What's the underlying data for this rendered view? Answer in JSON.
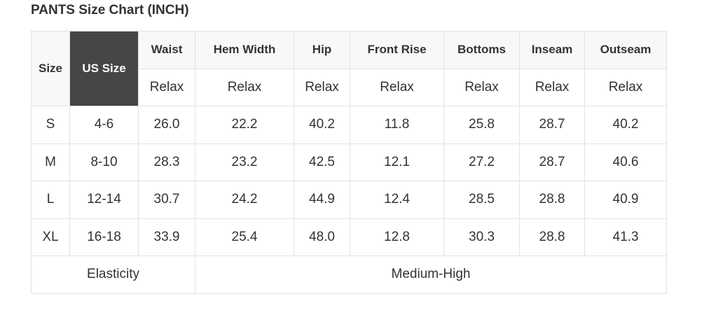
{
  "title": "PANTS Size Chart (INCH)",
  "headers": {
    "size": "Size",
    "us_size": "US Size",
    "columns": [
      "Waist",
      "Hem Width",
      "Hip",
      "Front Rise",
      "Bottoms",
      "Inseam",
      "Outseam"
    ],
    "fit": [
      "Relax",
      "Relax",
      "Relax",
      "Relax",
      "Relax",
      "Relax",
      "Relax"
    ]
  },
  "rows": [
    [
      "S",
      "4-6",
      "26.0",
      "22.2",
      "40.2",
      "11.8",
      "25.8",
      "28.7",
      "40.2"
    ],
    [
      "M",
      "8-10",
      "28.3",
      "23.2",
      "42.5",
      "12.1",
      "27.2",
      "28.7",
      "40.6"
    ],
    [
      "L",
      "12-14",
      "30.7",
      "24.2",
      "44.9",
      "12.4",
      "28.5",
      "28.8",
      "40.9"
    ],
    [
      "XL",
      "16-18",
      "33.9",
      "25.4",
      "48.0",
      "12.8",
      "30.3",
      "28.8",
      "41.3"
    ]
  ],
  "footer": {
    "label": "Elasticity",
    "value": "Medium-High"
  }
}
